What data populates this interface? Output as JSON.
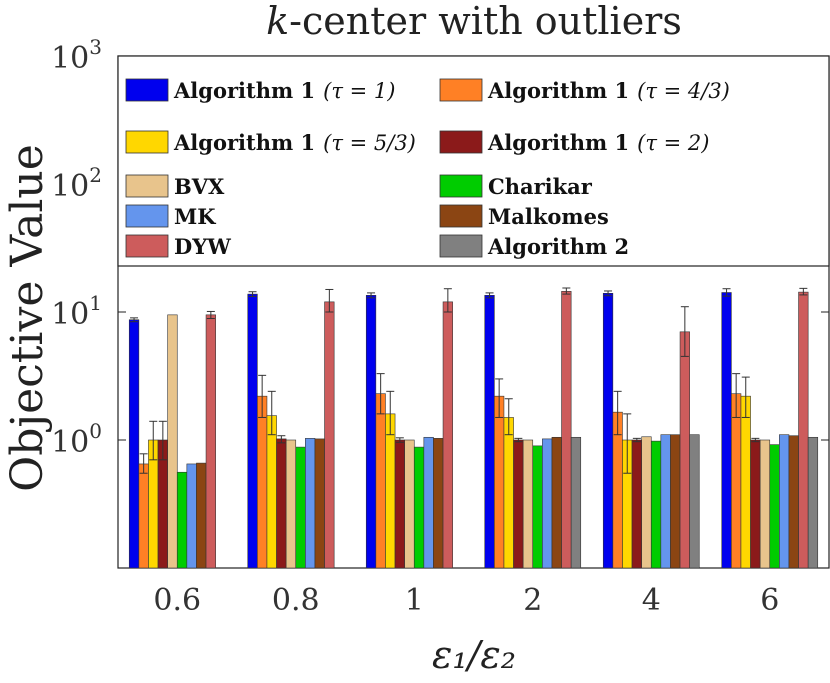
{
  "chart_data": {
    "type": "bar",
    "title_italic": "k",
    "title_rest": "-center with outliers",
    "ylabel": "Objective Value",
    "xlabel": "ε₁/ε₂",
    "yscale": "log",
    "ylim": [
      0.1,
      1000
    ],
    "yticks": [
      {
        "value": 1,
        "base": "10",
        "exp": "0"
      },
      {
        "value": 10,
        "base": "10",
        "exp": "1"
      },
      {
        "value": 100,
        "base": "10",
        "exp": "2"
      },
      {
        "value": 1000,
        "base": "10",
        "exp": "3"
      }
    ],
    "categories": [
      "0.6",
      "0.8",
      "1",
      "2",
      "4",
      "6"
    ],
    "series": [
      {
        "name": "Algorithm 1",
        "tau": "(τ = 1)",
        "color": "#0000ee",
        "values": [
          8.7,
          13.8,
          13.5,
          13.5,
          14.0,
          14.2
        ],
        "err": [
          [
            8.4,
            9.0
          ],
          [
            13.2,
            14.4
          ],
          [
            12.9,
            14.1
          ],
          [
            12.9,
            14.1
          ],
          [
            13.4,
            14.6
          ],
          [
            13.3,
            15.2
          ]
        ]
      },
      {
        "name": "Algorithm 1",
        "tau": "(τ = 4/3)",
        "color": "#ff8025",
        "values": [
          0.65,
          2.2,
          2.3,
          2.2,
          1.65,
          2.3
        ],
        "err": [
          [
            0.55,
            0.78
          ],
          [
            1.5,
            3.2
          ],
          [
            1.6,
            3.3
          ],
          [
            1.5,
            3.0
          ],
          [
            1.1,
            2.4
          ],
          [
            1.5,
            3.3
          ]
        ]
      },
      {
        "name": "Algorithm 1",
        "tau": "(τ = 5/3)",
        "color": "#ffd700",
        "values": [
          1.0,
          1.55,
          1.6,
          1.5,
          1.0,
          2.2
        ],
        "err": [
          [
            0.7,
            1.4
          ],
          [
            1.1,
            2.4
          ],
          [
            1.1,
            2.4
          ],
          [
            1.1,
            2.1
          ],
          [
            0.55,
            1.6
          ],
          [
            1.5,
            3.1
          ]
        ]
      },
      {
        "name": "Algorithm 1",
        "tau": "(τ = 2)",
        "color": "#8b1a1a",
        "values": [
          1.0,
          1.02,
          1.0,
          1.0,
          1.0,
          1.0
        ],
        "err": [
          [
            0.7,
            1.4
          ],
          [
            0.95,
            1.08
          ],
          [
            0.96,
            1.04
          ],
          [
            0.97,
            1.03
          ],
          [
            0.97,
            1.03
          ],
          [
            0.97,
            1.03
          ]
        ]
      },
      {
        "name": "BVX",
        "tau": "",
        "color": "#e8c48c",
        "values": [
          9.5,
          1.0,
          1.0,
          1.0,
          1.06,
          1.0
        ],
        "err": null
      },
      {
        "name": "Charikar",
        "tau": "",
        "color": "#00cc00",
        "values": [
          0.56,
          0.88,
          0.88,
          0.9,
          0.98,
          0.92
        ],
        "err": null
      },
      {
        "name": "MK",
        "tau": "",
        "color": "#6495ed",
        "values": [
          0.65,
          1.03,
          1.05,
          1.02,
          1.1,
          1.1
        ],
        "err": null
      },
      {
        "name": "Malkomes",
        "tau": "",
        "color": "#8b4513",
        "values": [
          0.66,
          1.02,
          1.03,
          1.05,
          1.1,
          1.08
        ],
        "err": null
      },
      {
        "name": "DYW",
        "tau": "",
        "color": "#cd5c5c",
        "values": [
          9.5,
          12.0,
          12.0,
          14.5,
          7.0,
          14.3
        ],
        "err": [
          [
            8.9,
            10.1
          ],
          [
            10.0,
            15.0
          ],
          [
            10.0,
            15.2
          ],
          [
            13.8,
            15.4
          ],
          [
            4.5,
            11.0
          ],
          [
            13.6,
            15.3
          ]
        ]
      },
      {
        "name": "Algorithm 2",
        "tau": "",
        "color": "#808080",
        "values": [
          null,
          null,
          null,
          1.05,
          1.1,
          1.05
        ],
        "err": null
      }
    ],
    "legend_position": "inside-top"
  }
}
